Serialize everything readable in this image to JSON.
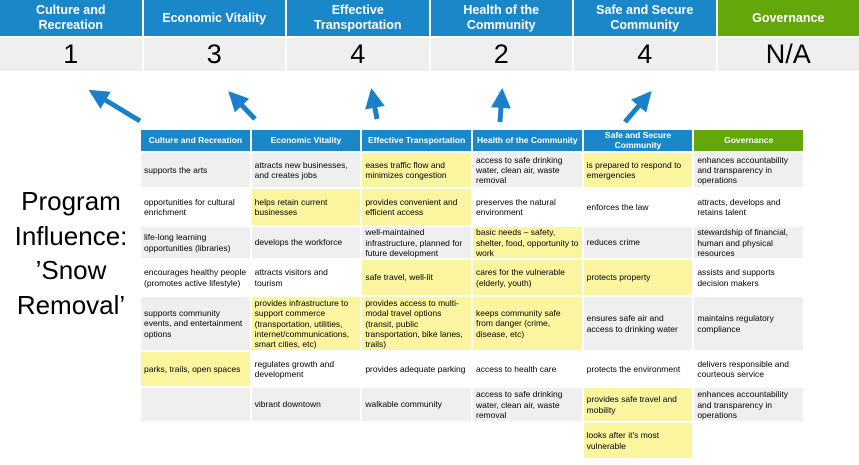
{
  "colors": {
    "header_blue": "#1987C8",
    "header_green": "#64A70B",
    "row_gray": "#EFEFEF",
    "highlight_yellow": "#FBF5A0",
    "arrow_blue": "#1C80C8"
  },
  "program_label": {
    "line1": "Program",
    "line2": "Influence:",
    "line3": "’Snow",
    "line4": "Removal’"
  },
  "priorities": [
    {
      "name": "Culture and Recreation",
      "score": "1",
      "accent": "blue"
    },
    {
      "name": "Economic Vitality",
      "score": "3",
      "accent": "blue"
    },
    {
      "name": "Effective Transportation",
      "score": "4",
      "accent": "blue"
    },
    {
      "name": "Health of the Community",
      "score": "2",
      "accent": "blue"
    },
    {
      "name": "Safe and Secure Community",
      "score": "4",
      "accent": "blue"
    },
    {
      "name": "Governance",
      "score": "N/A",
      "accent": "green"
    }
  ],
  "arrows": {
    "description": "five blue arrows pointing from matrix columns up to the scores",
    "targets": [
      "1",
      "3",
      "4",
      "2",
      "4"
    ]
  },
  "matrix": {
    "headers": [
      {
        "label": "Culture and Recreation",
        "accent": "blue"
      },
      {
        "label": "Economic Vitality",
        "accent": "blue"
      },
      {
        "label": "Effective Transportation",
        "accent": "blue"
      },
      {
        "label": "Health of the Community",
        "accent": "blue"
      },
      {
        "label": "Safe and Secure Community",
        "accent": "blue"
      },
      {
        "label": "Governance",
        "accent": "green"
      }
    ],
    "row_shading": [
      "gray",
      "white",
      "gray",
      "white",
      "gray",
      "white",
      "gray",
      "white"
    ],
    "rows": [
      [
        {
          "text": "supports the arts",
          "highlight": false
        },
        {
          "text": "attracts new businesses, and creates jobs",
          "highlight": false
        },
        {
          "text": "eases traffic flow and minimizes congestion",
          "highlight": true
        },
        {
          "text": "access to safe drinking water, clean air, waste removal",
          "highlight": false
        },
        {
          "text": "is prepared to respond to emergencies",
          "highlight": true
        },
        {
          "text": "enhances accountability and transparency in operations",
          "highlight": false
        }
      ],
      [
        {
          "text": "opportunities for cultural enrichment",
          "highlight": false
        },
        {
          "text": "helps retain current businesses",
          "highlight": true
        },
        {
          "text": "provides convenient and efficient access",
          "highlight": true
        },
        {
          "text": "preserves the natural environment",
          "highlight": false
        },
        {
          "text": "enforces the law",
          "highlight": false
        },
        {
          "text": "attracts, develops and retains talent",
          "highlight": false
        }
      ],
      [
        {
          "text": "life-long learning opportunities (libraries)",
          "highlight": false
        },
        {
          "text": "develops the workforce",
          "highlight": false
        },
        {
          "text": "well-maintained infrastructure, planned for future development",
          "highlight": false
        },
        {
          "text": "basic needs – safety, shelter, food, opportunity to work",
          "highlight": true
        },
        {
          "text": "reduces crime",
          "highlight": false
        },
        {
          "text": "stewardship of financial, human and physical resources",
          "highlight": false
        }
      ],
      [
        {
          "text": "encourages healthy people (promotes active lifestyle)",
          "highlight": false
        },
        {
          "text": "attracts visitors and tourism",
          "highlight": false
        },
        {
          "text": "safe travel, well-lit",
          "highlight": true
        },
        {
          "text": "cares for the vulnerable (elderly, youth)",
          "highlight": true
        },
        {
          "text": "protects property",
          "highlight": true
        },
        {
          "text": "assists and supports decision makers",
          "highlight": false
        }
      ],
      [
        {
          "text": "supports community events, and entertainment options",
          "highlight": false
        },
        {
          "text": "provides infrastructure to support commerce (transportation, utilities, internet/communications, smart cities, etc)",
          "highlight": true
        },
        {
          "text": "provides access to multi-modal travel options (transit, public transportation, bike lanes, trails)",
          "highlight": true
        },
        {
          "text": "keeps community safe from danger (crime, disease, etc)",
          "highlight": true
        },
        {
          "text": "ensures safe air and access to drinking water",
          "highlight": false
        },
        {
          "text": "maintains regulatory compliance",
          "highlight": false
        }
      ],
      [
        {
          "text": "parks, trails, open spaces",
          "highlight": true
        },
        {
          "text": "regulates growth and development",
          "highlight": false
        },
        {
          "text": "provides adequate parking",
          "highlight": false
        },
        {
          "text": "access to health care",
          "highlight": false
        },
        {
          "text": "protects the environment",
          "highlight": false
        },
        {
          "text": "delivers responsible and courteous service",
          "highlight": false
        }
      ],
      [
        {
          "text": "",
          "highlight": false
        },
        {
          "text": "vibrant downtown",
          "highlight": false
        },
        {
          "text": "walkable community",
          "highlight": false
        },
        {
          "text": "access to safe drinking water, clean air, waste removal",
          "highlight": false
        },
        {
          "text": "provides safe travel and mobility",
          "highlight": true
        },
        {
          "text": "enhances accountability and transparency in operations",
          "highlight": false
        }
      ],
      [
        {
          "text": "",
          "highlight": false
        },
        {
          "text": "",
          "highlight": false
        },
        {
          "text": "",
          "highlight": false
        },
        {
          "text": "",
          "highlight": false
        },
        {
          "text": "looks after it's most vulnerable",
          "highlight": true
        },
        {
          "text": "",
          "highlight": false
        }
      ]
    ]
  }
}
